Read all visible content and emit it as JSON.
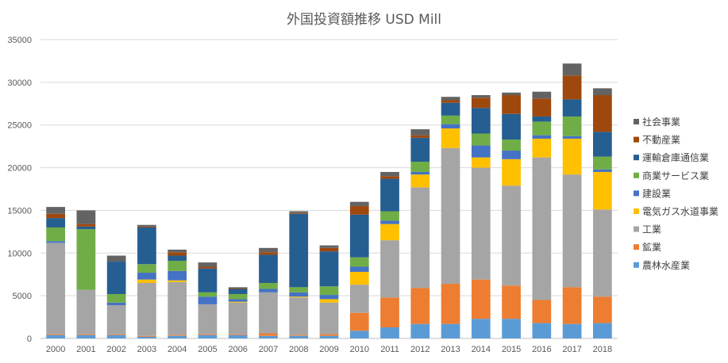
{
  "chart_data": {
    "type": "bar",
    "stacked": true,
    "title": "外国投資額推移 USD Mill",
    "xlabel": "",
    "ylabel": "",
    "ylim": [
      0,
      35000
    ],
    "yticks": [
      0,
      5000,
      10000,
      15000,
      20000,
      25000,
      30000,
      35000
    ],
    "grid": true,
    "legend_position": "right",
    "categories": [
      "2000",
      "2001",
      "2002",
      "2003",
      "2004",
      "2005",
      "2006",
      "2007",
      "2008",
      "2009",
      "2010",
      "2011",
      "2012",
      "2013",
      "2014",
      "2015",
      "2016",
      "2017",
      "2018"
    ],
    "series": [
      {
        "name": "農林水産業",
        "color": "#5B9BD5",
        "values": [
          400,
          400,
          400,
          200,
          300,
          400,
          400,
          300,
          300,
          300,
          900,
          1300,
          1700,
          1700,
          2300,
          2300,
          1800,
          1700,
          1800
        ]
      },
      {
        "name": "鉱業",
        "color": "#ED7D31",
        "values": [
          100,
          100,
          100,
          100,
          100,
          100,
          100,
          300,
          100,
          200,
          2100,
          3500,
          4200,
          4700,
          4600,
          3900,
          2700,
          4300,
          3100
        ]
      },
      {
        "name": "工業",
        "color": "#A5A5A5",
        "values": [
          10700,
          5200,
          3400,
          6200,
          6200,
          3500,
          3700,
          4800,
          4400,
          3700,
          3300,
          6700,
          11800,
          15900,
          13100,
          11700,
          16700,
          13200,
          10200
        ]
      },
      {
        "name": "電気ガス水道事業",
        "color": "#FFC000",
        "values": [
          0,
          0,
          0,
          400,
          200,
          0,
          100,
          0,
          100,
          400,
          1500,
          1900,
          1500,
          2300,
          1200,
          3100,
          2200,
          4200,
          4400
        ]
      },
      {
        "name": "建設業",
        "color": "#4472C4",
        "values": [
          200,
          0,
          300,
          800,
          1100,
          900,
          300,
          400,
          500,
          500,
          600,
          400,
          300,
          500,
          1400,
          1000,
          400,
          300,
          300
        ]
      },
      {
        "name": "商業サービス業",
        "color": "#70AD47",
        "values": [
          1600,
          7100,
          1000,
          1000,
          1200,
          500,
          600,
          700,
          600,
          1000,
          1100,
          1100,
          1200,
          1000,
          1400,
          1300,
          1600,
          2300,
          1500
        ]
      },
      {
        "name": "運輸倉庫通信業",
        "color": "#255E91",
        "values": [
          1100,
          300,
          3800,
          4300,
          600,
          2800,
          600,
          3300,
          8600,
          4100,
          5000,
          3800,
          2800,
          1500,
          3000,
          3000,
          600,
          2000,
          2900
        ]
      },
      {
        "name": "不動産業",
        "color": "#9E480E",
        "values": [
          500,
          300,
          0,
          100,
          400,
          200,
          100,
          300,
          100,
          400,
          1000,
          300,
          300,
          300,
          1200,
          2200,
          2100,
          2800,
          4300
        ]
      },
      {
        "name": "社会事業",
        "color": "#636363",
        "values": [
          800,
          1600,
          700,
          200,
          300,
          500,
          100,
          500,
          200,
          300,
          500,
          500,
          700,
          400,
          300,
          300,
          800,
          1400,
          800
        ]
      }
    ]
  }
}
